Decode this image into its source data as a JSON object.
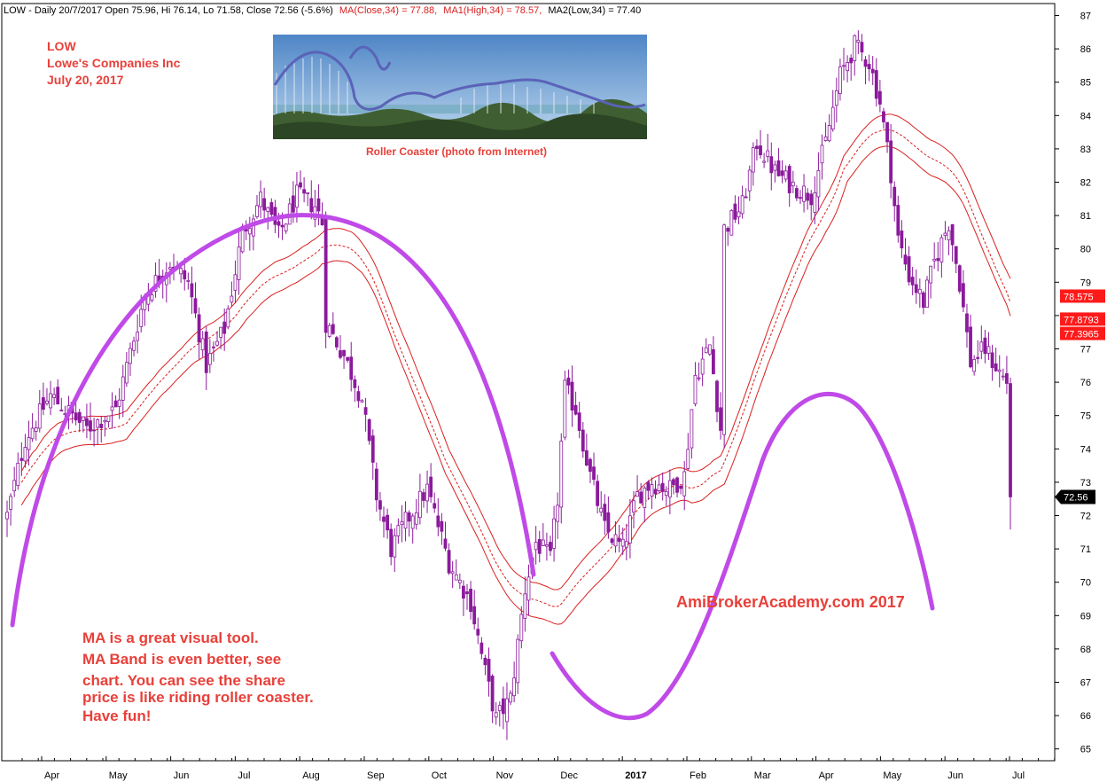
{
  "header": {
    "text": "LOW - Daily 20/7/2017 Open 75.96, Hi 76.14, Lo 71.58, Close 72.56 (-5.6%)",
    "ma_close": "MA(Close,34) = 77.88,",
    "ma_high": "MA1(High,34) = 78.57,",
    "ma_low": "MA2(Low,34) = 77.40"
  },
  "title_block": {
    "ticker": "LOW",
    "company": "Lowe's Companies Inc",
    "date": "July 20, 2017"
  },
  "photo": {
    "caption": "Roller Coaster (photo from Internet)"
  },
  "annotations": {
    "watermark": "AmiBrokerAcademy.com  2017",
    "note_lines": [
      "MA is a great visual tool.",
      "MA Band is even better, see",
      "chart. You can see the share",
      "price is like riding roller coaster.",
      "Have fun!"
    ]
  },
  "colors": {
    "candle": "#8b1a9c",
    "ma_band": "#d9201f",
    "arc": "#c04ae8",
    "annotation": "#e8403a",
    "last_price_tag": "#000000",
    "ma_tags": "#ff1a1a"
  },
  "chart_data": {
    "type": "candlestick",
    "symbol": "LOW",
    "x_labels": [
      "Apr",
      "May",
      "Jun",
      "Jul",
      "Aug",
      "Sep",
      "Oct",
      "Nov",
      "Dec",
      "2017",
      "Feb",
      "Mar",
      "Apr",
      "May",
      "Jun",
      "Jul"
    ],
    "ylim": [
      64.6,
      87.4
    ],
    "y_ticks": [
      65,
      66,
      67,
      68,
      69,
      70,
      71,
      72,
      73,
      74,
      75,
      76,
      77,
      78,
      79,
      80,
      81,
      82,
      83,
      84,
      85,
      86,
      87
    ],
    "price_path": [
      {
        "i": 0,
        "p": 72.0
      },
      {
        "i": 5,
        "p": 74.3
      },
      {
        "i": 12,
        "p": 75.6
      },
      {
        "i": 22,
        "p": 74.6
      },
      {
        "i": 30,
        "p": 75.2
      },
      {
        "i": 38,
        "p": 78.6
      },
      {
        "i": 45,
        "p": 79.6
      },
      {
        "i": 50,
        "p": 79.0
      },
      {
        "i": 55,
        "p": 76.5
      },
      {
        "i": 60,
        "p": 77.6
      },
      {
        "i": 65,
        "p": 80.5
      },
      {
        "i": 70,
        "p": 81.5
      },
      {
        "i": 75,
        "p": 80.4
      },
      {
        "i": 80,
        "p": 81.6
      },
      {
        "i": 85,
        "p": 81.3
      },
      {
        "i": 87,
        "p": 80.8
      },
      {
        "i": 88,
        "p": 77.8
      },
      {
        "i": 93,
        "p": 76.8
      },
      {
        "i": 98,
        "p": 75.5
      },
      {
        "i": 102,
        "p": 72.6
      },
      {
        "i": 106,
        "p": 71.0
      },
      {
        "i": 110,
        "p": 71.8
      },
      {
        "i": 116,
        "p": 72.8
      },
      {
        "i": 122,
        "p": 70.6
      },
      {
        "i": 128,
        "p": 69.4
      },
      {
        "i": 132,
        "p": 67.3
      },
      {
        "i": 135,
        "p": 65.9
      },
      {
        "i": 139,
        "p": 66.5
      },
      {
        "i": 143,
        "p": 69.8
      },
      {
        "i": 146,
        "p": 71.2
      },
      {
        "i": 150,
        "p": 70.7
      },
      {
        "i": 152,
        "p": 72.5
      },
      {
        "i": 154,
        "p": 75.8
      },
      {
        "i": 157,
        "p": 75.2
      },
      {
        "i": 161,
        "p": 73.2
      },
      {
        "i": 165,
        "p": 71.6
      },
      {
        "i": 170,
        "p": 71.0
      },
      {
        "i": 174,
        "p": 72.6
      },
      {
        "i": 178,
        "p": 73.0
      },
      {
        "i": 183,
        "p": 72.8
      },
      {
        "i": 187,
        "p": 73.2
      },
      {
        "i": 190,
        "p": 76.2
      },
      {
        "i": 194,
        "p": 77.1
      },
      {
        "i": 197,
        "p": 74.6
      },
      {
        "i": 198,
        "p": 80.6
      },
      {
        "i": 203,
        "p": 81.3
      },
      {
        "i": 207,
        "p": 83.2
      },
      {
        "i": 212,
        "p": 82.3
      },
      {
        "i": 217,
        "p": 81.9
      },
      {
        "i": 222,
        "p": 81.6
      },
      {
        "i": 226,
        "p": 83.2
      },
      {
        "i": 230,
        "p": 85.2
      },
      {
        "i": 234,
        "p": 86.1
      },
      {
        "i": 238,
        "p": 85.6
      },
      {
        "i": 241,
        "p": 84.4
      },
      {
        "i": 244,
        "p": 82.3
      },
      {
        "i": 246,
        "p": 80.3
      },
      {
        "i": 249,
        "p": 79.2
      },
      {
        "i": 253,
        "p": 78.4
      },
      {
        "i": 256,
        "p": 79.6
      },
      {
        "i": 260,
        "p": 80.8
      },
      {
        "i": 263,
        "p": 79.0
      },
      {
        "i": 266,
        "p": 76.6
      },
      {
        "i": 270,
        "p": 77.0
      },
      {
        "i": 274,
        "p": 76.3
      },
      {
        "i": 276,
        "p": 76.0
      },
      {
        "i": 277,
        "p": 72.56
      }
    ],
    "ma_close_last": 77.88,
    "ma_high_last": 78.57,
    "ma_low_last": 77.4,
    "last_close": 72.56,
    "last_close_label": "72.56",
    "ma_high_label": "78.575",
    "ma_close_label": "77.8793",
    "ma_low_label": "77.3965",
    "ma_period": 34
  }
}
